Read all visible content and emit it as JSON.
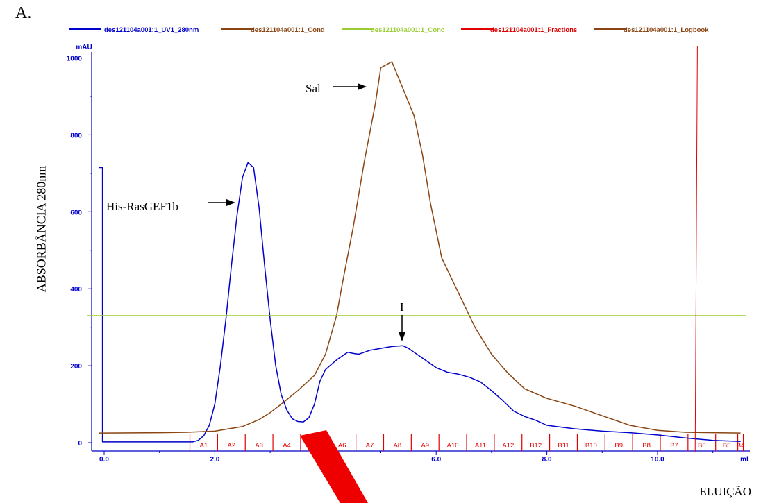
{
  "panel_label": "A.",
  "colors": {
    "uv": "#0000cc",
    "cond": "#8b4513",
    "conc": "#9acd32",
    "fractions": "#e00000",
    "logbook": "#8b4513"
  },
  "chart_data": {
    "type": "line",
    "y_unit": "mAU",
    "x_unit": "ml",
    "ylabel": "ABSORBÂNCIA 280nm",
    "xlabel": "ELUIÇÃO",
    "xlim": [
      -0.3,
      11.6
    ],
    "ylim": [
      -25,
      1030
    ],
    "x_ticks": [
      {
        "value": 0,
        "label": "0.0"
      },
      {
        "value": 2,
        "label": "2.0"
      },
      {
        "value": 4,
        "label": ""
      },
      {
        "value": 6,
        "label": "6.0"
      },
      {
        "value": 8,
        "label": "8.0"
      },
      {
        "value": 10,
        "label": "10.0"
      }
    ],
    "y_ticks": [
      {
        "value": 0,
        "label": "0"
      },
      {
        "value": 200,
        "label": "200"
      },
      {
        "value": 400,
        "label": "400"
      },
      {
        "value": 600,
        "label": "600"
      },
      {
        "value": 800,
        "label": "800"
      },
      {
        "value": 1000,
        "label": "1000"
      }
    ],
    "legend": [
      "des121104a001:1_UV1_280nm",
      "des121104a001:1_Cond",
      "des121104a001:1_Conc",
      "des121104a001:1_Fractions",
      "des121104a001:1_Logbook"
    ],
    "legend_position": "top",
    "series": [
      {
        "name": "des121104a001:1_UV1_280nm",
        "color": "#0000cc",
        "x": [
          -0.1,
          -0.03,
          -0.03,
          0.0,
          1.6,
          1.7,
          1.8,
          1.9,
          2.0,
          2.1,
          2.2,
          2.3,
          2.4,
          2.5,
          2.6,
          2.7,
          2.8,
          2.9,
          3.0,
          3.1,
          3.2,
          3.3,
          3.4,
          3.5,
          3.6,
          3.7,
          3.8,
          3.9,
          4.0,
          4.2,
          4.4,
          4.5,
          4.6,
          4.8,
          5.0,
          5.2,
          5.4,
          5.5,
          5.6,
          5.8,
          6.0,
          6.2,
          6.4,
          6.6,
          6.8,
          7.0,
          7.2,
          7.4,
          7.6,
          7.8,
          8.0,
          8.5,
          9.0,
          9.5,
          10.0,
          10.5,
          11.0,
          11.5
        ],
        "y": [
          715,
          715,
          2,
          2,
          2,
          6,
          18,
          45,
          100,
          200,
          320,
          460,
          590,
          690,
          728,
          715,
          610,
          460,
          320,
          200,
          125,
          85,
          62,
          55,
          54,
          65,
          100,
          160,
          190,
          215,
          235,
          232,
          230,
          240,
          245,
          250,
          252,
          245,
          235,
          215,
          195,
          183,
          178,
          170,
          158,
          135,
          110,
          82,
          68,
          58,
          45,
          36,
          30,
          26,
          20,
          12,
          6,
          3
        ]
      },
      {
        "name": "des121104a001:1_Cond",
        "color": "#8b4513",
        "x": [
          -0.1,
          0.0,
          1.0,
          1.5,
          2.0,
          2.5,
          2.8,
          3.0,
          3.2,
          3.5,
          3.8,
          4.0,
          4.2,
          4.3,
          4.5,
          4.7,
          4.9,
          5.0,
          5.2,
          5.4,
          5.6,
          5.75,
          5.9,
          6.1,
          6.3,
          6.5,
          6.7,
          7.0,
          7.3,
          7.6,
          8.0,
          8.5,
          9.0,
          9.5,
          10.0,
          10.5,
          11.0,
          11.5
        ],
        "y": [
          25,
          25,
          26,
          27,
          30,
          42,
          60,
          78,
          100,
          135,
          175,
          230,
          330,
          410,
          560,
          730,
          880,
          975,
          990,
          920,
          850,
          750,
          620,
          480,
          420,
          360,
          300,
          230,
          180,
          140,
          115,
          95,
          70,
          45,
          32,
          27,
          26,
          25
        ]
      },
      {
        "name": "des121104a001:1_Conc",
        "color": "#9acd32",
        "x": [
          -0.3,
          11.6
        ],
        "y": [
          330,
          330
        ]
      },
      {
        "name": "des121104a001:1_Fractions",
        "color": "#e00000",
        "x": [
          10.72,
          10.68
        ],
        "y": [
          1030,
          -25
        ]
      }
    ],
    "fractions": {
      "labels": [
        "A1",
        "A2",
        "A3",
        "A4",
        "A5",
        "A6",
        "A7",
        "A8",
        "A9",
        "A10",
        "A11",
        "A12",
        "B12",
        "B11",
        "B10",
        "B9",
        "B8",
        "B7",
        "B6",
        "B5",
        "B4"
      ],
      "boundaries": [
        1.55,
        2.05,
        2.55,
        3.05,
        3.55,
        4.05,
        4.55,
        5.05,
        5.55,
        6.05,
        6.55,
        7.05,
        7.55,
        8.05,
        8.55,
        9.05,
        9.55,
        10.05,
        10.55,
        11.05,
        11.45,
        11.55
      ]
    },
    "annotations": [
      {
        "text": "His-RasGEF1b",
        "x": 2.3,
        "y": 630
      },
      {
        "text": "Sal",
        "x": 4.65,
        "y": 930
      },
      {
        "text": "I",
        "x": 5.4,
        "y": 330
      }
    ]
  }
}
